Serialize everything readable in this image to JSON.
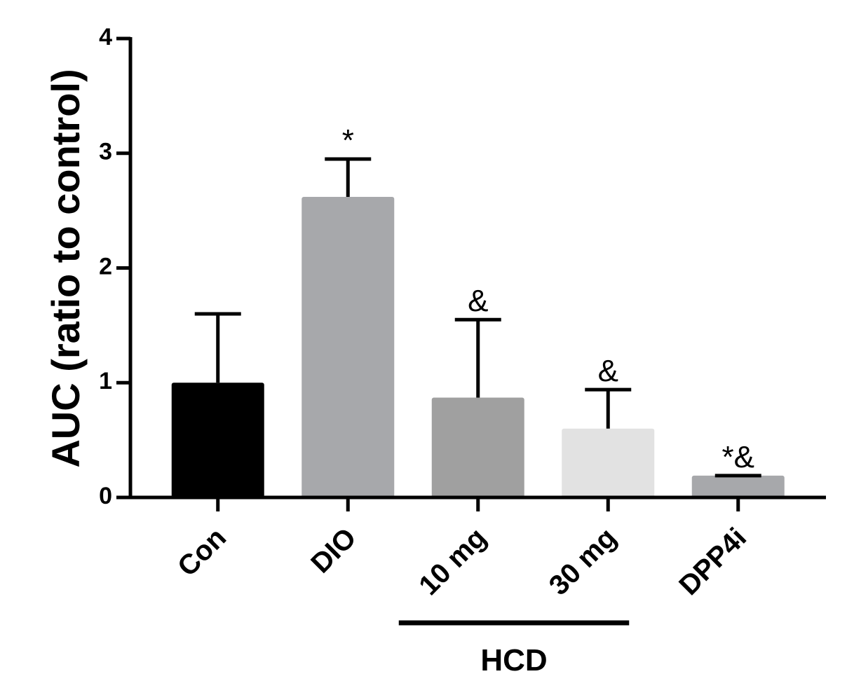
{
  "chart_data": {
    "type": "bar",
    "ylabel": "AUC (ratio to control)",
    "xlabel": "",
    "ylim": [
      0,
      4
    ],
    "yticks": [
      "0",
      "1",
      "2",
      "3",
      "4"
    ],
    "grid": false,
    "categories": [
      "Con",
      "DIO",
      "10 mg",
      "30 mg",
      "DPP4i"
    ],
    "values": [
      1.0,
      2.62,
      0.87,
      0.6,
      0.19
    ],
    "error_upper": [
      1.6,
      2.95,
      1.55,
      0.94,
      0.19
    ],
    "annotations": [
      "",
      "*",
      "&",
      "&",
      "*&"
    ],
    "colors": [
      "#000000",
      "#a7a8ab",
      "#a0a0a0",
      "#e2e2e2",
      "#a7a8ab"
    ],
    "group": {
      "label": "HCD",
      "categories": [
        "10 mg",
        "30 mg"
      ]
    }
  }
}
